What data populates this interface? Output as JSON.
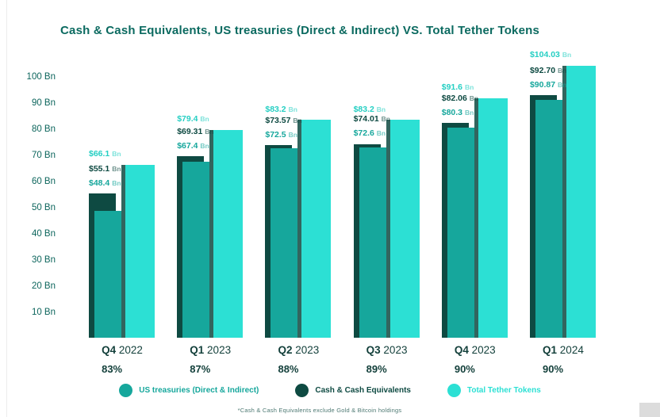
{
  "title": "Cash & Cash Equivalents, US treasuries (Direct & Indirect) VS. Total Tether Tokens",
  "colors": {
    "treasuries": "#16A79C",
    "cash": "#0E4A42",
    "tether": "#2CE0D4",
    "tether_text": "#25CFC3",
    "title": "#0B6A60",
    "axis_text": "#0C655C",
    "xlabel_text": "#123F3A",
    "footnote_text": "#4F7A74"
  },
  "chart_data": {
    "type": "bar",
    "title": "Cash & Cash Equivalents, US treasuries (Direct & Indirect) VS. Total Tether Tokens",
    "unit": "Bn",
    "ylim": [
      0,
      110
    ],
    "grid": false,
    "legend_position": "bottom",
    "categories": [
      "Q4 2022",
      "Q1 2023",
      "Q2 2023",
      "Q3 2023",
      "Q4 2023",
      "Q1 2024"
    ],
    "percent_labels": [
      "83%",
      "87%",
      "88%",
      "89%",
      "90%",
      "90%"
    ],
    "y_ticks": [
      {
        "value": 10,
        "label": "10 Bn"
      },
      {
        "value": 20,
        "label": "20 Bn"
      },
      {
        "value": 30,
        "label": "30 Bn"
      },
      {
        "value": 40,
        "label": "40 Bn"
      },
      {
        "value": 50,
        "label": "50 Bn"
      },
      {
        "value": 60,
        "label": "60 Bn"
      },
      {
        "value": 70,
        "label": "70 Bn"
      },
      {
        "value": 80,
        "label": "80 Bn"
      },
      {
        "value": 90,
        "label": "90 Bn"
      },
      {
        "value": 100,
        "label": "100 Bn"
      }
    ],
    "series": [
      {
        "name": "US treasuries (Direct & Indirect)",
        "values": [
          48.4,
          67.4,
          72.5,
          72.6,
          80.3,
          90.87
        ]
      },
      {
        "name": "Cash & Cash Equivalents",
        "values": [
          55.1,
          69.31,
          73.57,
          74.01,
          82.06,
          92.7
        ]
      },
      {
        "name": "Total Tether Tokens",
        "values": [
          66.1,
          79.4,
          83.2,
          83.2,
          91.6,
          104.03
        ]
      }
    ],
    "groups": [
      {
        "quarter": "Q4",
        "year": "2022",
        "percent": "83%",
        "treasuries": {
          "value": 48.4,
          "label": "$48.4"
        },
        "cash": {
          "value": 55.1,
          "label": "$55.1"
        },
        "tether": {
          "value": 66.1,
          "label": "$66.1"
        }
      },
      {
        "quarter": "Q1",
        "year": "2023",
        "percent": "87%",
        "treasuries": {
          "value": 67.4,
          "label": "$67.4"
        },
        "cash": {
          "value": 69.31,
          "label": "$69.31"
        },
        "tether": {
          "value": 79.4,
          "label": "$79.4"
        }
      },
      {
        "quarter": "Q2",
        "year": "2023",
        "percent": "88%",
        "treasuries": {
          "value": 72.5,
          "label": "$72.5"
        },
        "cash": {
          "value": 73.57,
          "label": "$73.57"
        },
        "tether": {
          "value": 83.2,
          "label": "$83.2"
        }
      },
      {
        "quarter": "Q3",
        "year": "2023",
        "percent": "89%",
        "treasuries": {
          "value": 72.6,
          "label": "$72.6"
        },
        "cash": {
          "value": 74.01,
          "label": "$74.01"
        },
        "tether": {
          "value": 83.2,
          "label": "$83.2"
        }
      },
      {
        "quarter": "Q4",
        "year": "2023",
        "percent": "90%",
        "treasuries": {
          "value": 80.3,
          "label": "$80.3"
        },
        "cash": {
          "value": 82.06,
          "label": "$82.06"
        },
        "tether": {
          "value": 91.6,
          "label": "$91.6"
        }
      },
      {
        "quarter": "Q1",
        "year": "2024",
        "percent": "90%",
        "treasuries": {
          "value": 90.87,
          "label": "$90.87"
        },
        "cash": {
          "value": 92.7,
          "label": "$92.70"
        },
        "tether": {
          "value": 104.03,
          "label": "$104.03"
        }
      }
    ]
  },
  "legend": {
    "items": [
      {
        "label": "US treasuries (Direct & Indirect)",
        "color": "#16A79C"
      },
      {
        "label": "Cash & Cash Equivalents",
        "color": "#0E4A42"
      },
      {
        "label": "Total Tether Tokens",
        "color": "#2CE0D4"
      }
    ]
  },
  "footnote": "*Cash & Cash Equivalents exclude Gold & Bitcoin holdings"
}
